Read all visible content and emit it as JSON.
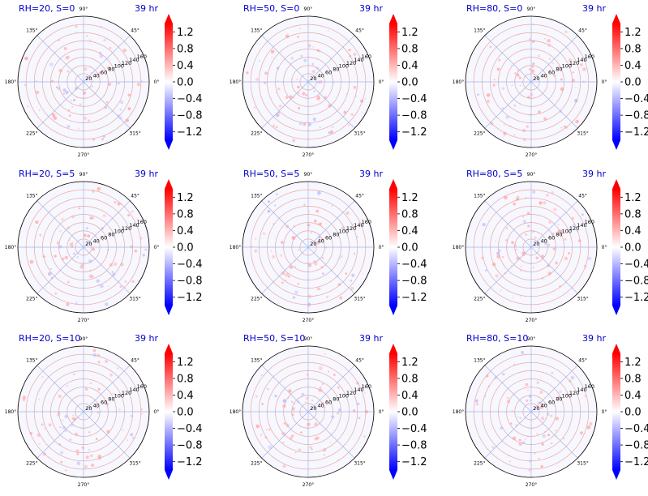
{
  "chart_data": {
    "type": "polar",
    "time_label": "39 hr",
    "radial_ticks": [
      "20",
      "40",
      "60",
      "80",
      "100",
      "120",
      "140",
      "160"
    ],
    "radial_max": 160,
    "angular_ticks": [
      "0°",
      "45°",
      "90°",
      "135°",
      "180°",
      "225°",
      "270°",
      "315°"
    ],
    "colorbar": {
      "colormap": "bwr",
      "range": [
        -1.4,
        1.4
      ],
      "extend": "both",
      "ticks": [
        "1.2",
        "0.8",
        "0.4",
        "0.0",
        "−0.4",
        "−0.8",
        "−1.2"
      ],
      "tick_values": [
        1.2,
        0.8,
        0.4,
        0.0,
        -0.4,
        -0.8,
        -1.2
      ]
    },
    "panels": [
      {
        "title": "RH=20, S=0",
        "rh": 20,
        "s": 0
      },
      {
        "title": "RH=50, S=0",
        "rh": 50,
        "s": 0
      },
      {
        "title": "RH=80, S=0",
        "rh": 80,
        "s": 0
      },
      {
        "title": "RH=20, S=5",
        "rh": 20,
        "s": 5
      },
      {
        "title": "RH=50, S=5",
        "rh": 50,
        "s": 5
      },
      {
        "title": "RH=80, S=5",
        "rh": 80,
        "s": 5
      },
      {
        "title": "RH=20, S=10",
        "rh": 20,
        "s": 10
      },
      {
        "title": "RH=50, S=10",
        "rh": 50,
        "s": 10
      },
      {
        "title": "RH=80, S=10",
        "rh": 80,
        "s": 10
      }
    ],
    "grid_ring_color": "#e8a9a0",
    "grid_spoke_color": "#a6b4e6"
  }
}
